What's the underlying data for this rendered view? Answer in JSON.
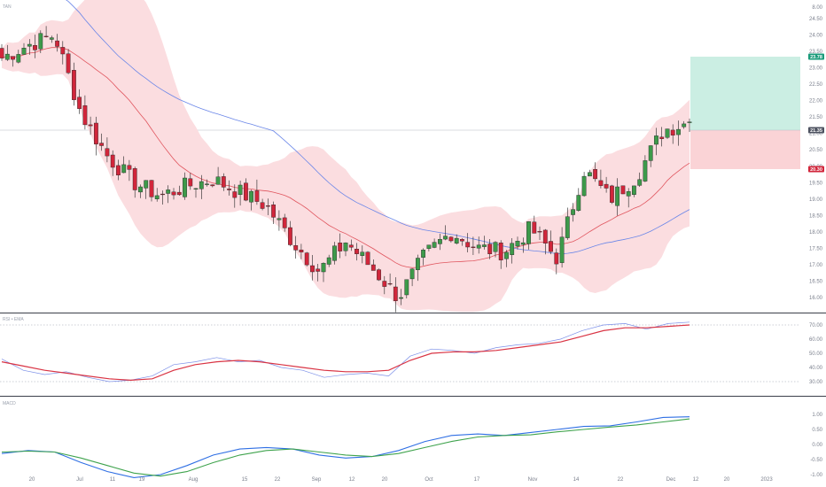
{
  "chart_data": [
    {
      "type": "candlestick",
      "pane": "price",
      "label": "TAN",
      "overlays": [
        "bollinger-bands",
        "sma-20",
        "sma-50"
      ],
      "y_ticks": [
        "8.00",
        "24.50",
        "24.00",
        "23.50",
        "23.00",
        "22.50",
        "22.00",
        "21.50",
        "21.00",
        "20.50",
        "20.00",
        "19.50",
        "19.00",
        "18.50",
        "18.00",
        "17.50",
        "17.00",
        "16.50",
        "16.00"
      ],
      "position_tool": {
        "target": "23.78",
        "entry": "21.35",
        "stop": "20.30"
      },
      "last_price": "21.35",
      "approx_candles": [
        {
          "d": "Jun 16",
          "o": 23.5,
          "h": 23.8,
          "l": 23.0,
          "c": 23.3
        },
        {
          "d": "Jun 22",
          "o": 23.2,
          "h": 23.9,
          "l": 22.8,
          "c": 23.7
        },
        {
          "d": "Jun 30",
          "o": 24.5,
          "h": 24.8,
          "l": 23.7,
          "c": 24.0
        },
        {
          "d": "Jul 07",
          "o": 22.8,
          "h": 23.0,
          "l": 21.5,
          "c": 21.6
        },
        {
          "d": "Jul 11",
          "o": 20.9,
          "h": 21.2,
          "l": 20.2,
          "c": 20.3
        },
        {
          "d": "Jul 14",
          "o": 19.8,
          "h": 20.0,
          "l": 19.3,
          "c": 19.5
        },
        {
          "d": "Jul 19",
          "o": 19.0,
          "h": 19.3,
          "l": 18.8,
          "c": 19.1
        },
        {
          "d": "Jul 27",
          "o": 19.1,
          "h": 19.6,
          "l": 18.7,
          "c": 19.4
        },
        {
          "d": "Aug 05",
          "o": 19.4,
          "h": 19.9,
          "l": 19.0,
          "c": 19.6
        },
        {
          "d": "Aug 15",
          "o": 19.5,
          "h": 19.8,
          "l": 19.0,
          "c": 19.2
        },
        {
          "d": "Aug 25",
          "o": 19.2,
          "h": 19.4,
          "l": 18.6,
          "c": 18.8
        },
        {
          "d": "Sep 02",
          "o": 18.6,
          "h": 18.8,
          "l": 17.5,
          "c": 17.7
        },
        {
          "d": "Sep 08",
          "o": 17.3,
          "h": 17.5,
          "l": 16.6,
          "c": 16.8
        },
        {
          "d": "Sep 16",
          "o": 17.0,
          "h": 17.9,
          "l": 16.9,
          "c": 17.7
        },
        {
          "d": "Sep 26",
          "o": 17.0,
          "h": 17.2,
          "l": 16.6,
          "c": 16.9
        },
        {
          "d": "Sep 30",
          "o": 16.2,
          "h": 16.5,
          "l": 15.8,
          "c": 16.0
        },
        {
          "d": "Oct 04",
          "o": 16.5,
          "h": 17.5,
          "l": 16.3,
          "c": 17.3
        },
        {
          "d": "Oct 10",
          "o": 17.6,
          "h": 18.2,
          "l": 17.4,
          "c": 18.0
        },
        {
          "d": "Oct 17",
          "o": 17.8,
          "h": 18.0,
          "l": 17.3,
          "c": 17.5
        },
        {
          "d": "Oct 26",
          "o": 17.2,
          "h": 17.7,
          "l": 17.0,
          "c": 17.4
        },
        {
          "d": "Nov 01",
          "o": 17.6,
          "h": 18.4,
          "l": 17.4,
          "c": 18.1
        },
        {
          "d": "Nov 08",
          "o": 17.4,
          "h": 17.6,
          "l": 17.0,
          "c": 17.2
        },
        {
          "d": "Nov 10",
          "o": 18.8,
          "h": 20.1,
          "l": 18.6,
          "c": 19.9
        },
        {
          "d": "Nov 17",
          "o": 19.4,
          "h": 19.6,
          "l": 18.9,
          "c": 19.0
        },
        {
          "d": "Nov 24",
          "o": 19.2,
          "h": 19.9,
          "l": 19.0,
          "c": 19.7
        },
        {
          "d": "Dec 01",
          "o": 20.0,
          "h": 21.3,
          "l": 19.9,
          "c": 21.1
        },
        {
          "d": "Dec 08",
          "o": 20.9,
          "h": 21.5,
          "l": 20.6,
          "c": 21.35
        }
      ]
    },
    {
      "type": "line",
      "pane": "rsi",
      "label": "RSI • EMA",
      "y_ticks": [
        "70.00",
        "60.00",
        "50.00",
        "40.00",
        "30.00"
      ],
      "levels": [
        70,
        30
      ],
      "series": [
        {
          "name": "RSI",
          "color": "#7b8fe8",
          "values": [
            46,
            38,
            35,
            37,
            33,
            30,
            31,
            34,
            42,
            44,
            47,
            44,
            45,
            40,
            38,
            33,
            35,
            36,
            34,
            48,
            53,
            52,
            50,
            54,
            56,
            57,
            60,
            66,
            70,
            71,
            67,
            71,
            72
          ]
        },
        {
          "name": "EMA",
          "color": "#d93444",
          "values": [
            44,
            41,
            38,
            36,
            34,
            32,
            31,
            32,
            38,
            42,
            44,
            45,
            44,
            42,
            40,
            38,
            37,
            37,
            38,
            45,
            50,
            51,
            51,
            52,
            54,
            56,
            58,
            62,
            66,
            68,
            68,
            69,
            70
          ]
        }
      ]
    },
    {
      "type": "line",
      "pane": "macd",
      "label": "MACD",
      "y_ticks": [
        "1.00",
        "0.50",
        "0.00",
        "-0.50",
        "-1.00",
        "-1.50"
      ],
      "series": [
        {
          "name": "MACD",
          "color": "#2f6fe4",
          "values": [
            -0.3,
            -0.2,
            -0.25,
            -0.6,
            -0.9,
            -1.1,
            -1.0,
            -0.7,
            -0.35,
            -0.15,
            -0.1,
            -0.15,
            -0.35,
            -0.45,
            -0.4,
            -0.2,
            0.1,
            0.3,
            0.35,
            0.3,
            0.4,
            0.5,
            0.6,
            0.62,
            0.75,
            0.9,
            0.92
          ]
        },
        {
          "name": "Signal",
          "color": "#3fa34d",
          "values": [
            -0.25,
            -0.22,
            -0.25,
            -0.45,
            -0.7,
            -0.95,
            -1.05,
            -0.9,
            -0.6,
            -0.35,
            -0.2,
            -0.15,
            -0.25,
            -0.35,
            -0.4,
            -0.3,
            -0.1,
            0.1,
            0.25,
            0.3,
            0.32,
            0.42,
            0.5,
            0.58,
            0.65,
            0.75,
            0.85
          ]
        }
      ]
    }
  ],
  "time_axis": [
    "20",
    "Jul",
    "11",
    "19",
    "Aug",
    "15",
    "22",
    "Sep",
    "12",
    "20",
    "Oct",
    "17",
    "Nov",
    "14",
    "22",
    "Dec",
    "12",
    "20",
    "2023"
  ],
  "colors": {
    "up": "#3d9a4a",
    "down": "#d1263b",
    "band_fill": "#fbdde0",
    "sma_short": "#e0555e",
    "sma_long": "#6a86e8",
    "target_zone": "#cbeee3",
    "stop_zone": "#fad3d6",
    "target_badge": "#1a9b7a",
    "stop_badge": "#d1263b",
    "last_badge": "#4d5260"
  }
}
